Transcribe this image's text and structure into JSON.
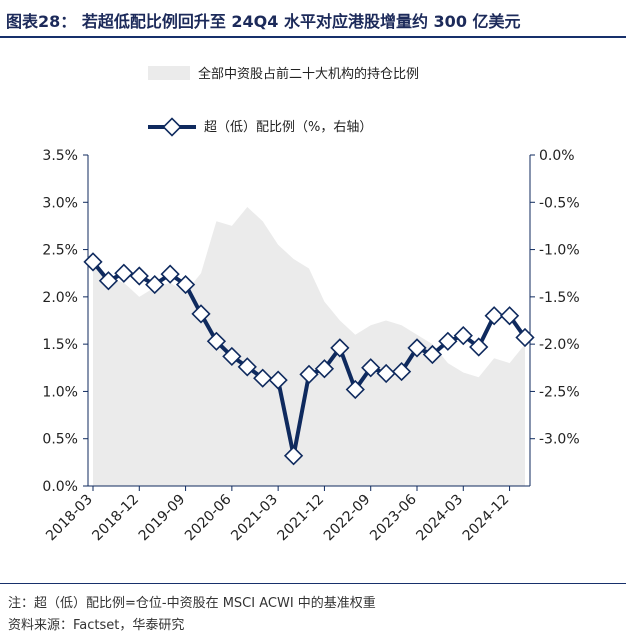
{
  "figure": {
    "title": "图表28： 若超低配比例回升至 24Q4 水平对应港股增量约 300 亿美元",
    "note": "注：超（低）配比例=仓位-中资股在 MSCI ACWI 中的基准权重",
    "source": "资料来源：Factset，华泰研究"
  },
  "chart_data": {
    "type": "area+line",
    "x": [
      "2018-03",
      "2018-06",
      "2018-09",
      "2018-12",
      "2019-03",
      "2019-06",
      "2019-09",
      "2019-12",
      "2020-03",
      "2020-06",
      "2020-09",
      "2020-12",
      "2021-03",
      "2021-06",
      "2021-09",
      "2021-12",
      "2022-03",
      "2022-06",
      "2022-09",
      "2022-12",
      "2023-03",
      "2023-06",
      "2023-09",
      "2023-12",
      "2024-03",
      "2024-06",
      "2024-09",
      "2024-12",
      "2025-03"
    ],
    "x_tick_labels": [
      "2018-03",
      "2018-12",
      "2019-09",
      "2020-06",
      "2021-03",
      "2021-12",
      "2022-09",
      "2023-06",
      "2024-03",
      "2024-12"
    ],
    "series": [
      {
        "name": "全部中资股占前二十大机构的持仓比例",
        "type": "area",
        "axis": "left",
        "color": "#ebebeb",
        "values": [
          2.35,
          2.2,
          2.15,
          2.0,
          2.1,
          2.15,
          2.05,
          2.25,
          2.8,
          2.75,
          2.95,
          2.8,
          2.55,
          2.4,
          2.3,
          1.95,
          1.75,
          1.6,
          1.7,
          1.75,
          1.7,
          1.6,
          1.5,
          1.3,
          1.2,
          1.15,
          1.35,
          1.3,
          1.5
        ]
      },
      {
        "name": "超（低）配比例（%，右轴）",
        "type": "line",
        "axis": "right",
        "color": "#0f2a5e",
        "values": [
          -1.13,
          -1.33,
          -1.25,
          -1.28,
          -1.37,
          -1.26,
          -1.37,
          -1.68,
          -1.97,
          -2.13,
          -2.24,
          -2.36,
          -2.38,
          -3.18,
          -2.32,
          -2.26,
          -2.04,
          -2.48,
          -2.25,
          -2.31,
          -2.29,
          -2.04,
          -2.11,
          -1.97,
          -1.91,
          -2.03,
          -1.7,
          -1.7,
          -1.93
        ]
      }
    ],
    "left_axis": {
      "min": 0,
      "max": 3.5,
      "ticks": [
        "0.0%",
        "0.5%",
        "1.0%",
        "1.5%",
        "2.0%",
        "2.5%",
        "3.0%",
        "3.5%"
      ]
    },
    "right_axis": {
      "min": -3.5,
      "max": 0,
      "ticks": [
        "-3.0%",
        "-2.5%",
        "-2.0%",
        "-1.5%",
        "-1.0%",
        "-0.5%",
        "0.0%"
      ]
    },
    "grid": false,
    "legend_placement": "top"
  }
}
